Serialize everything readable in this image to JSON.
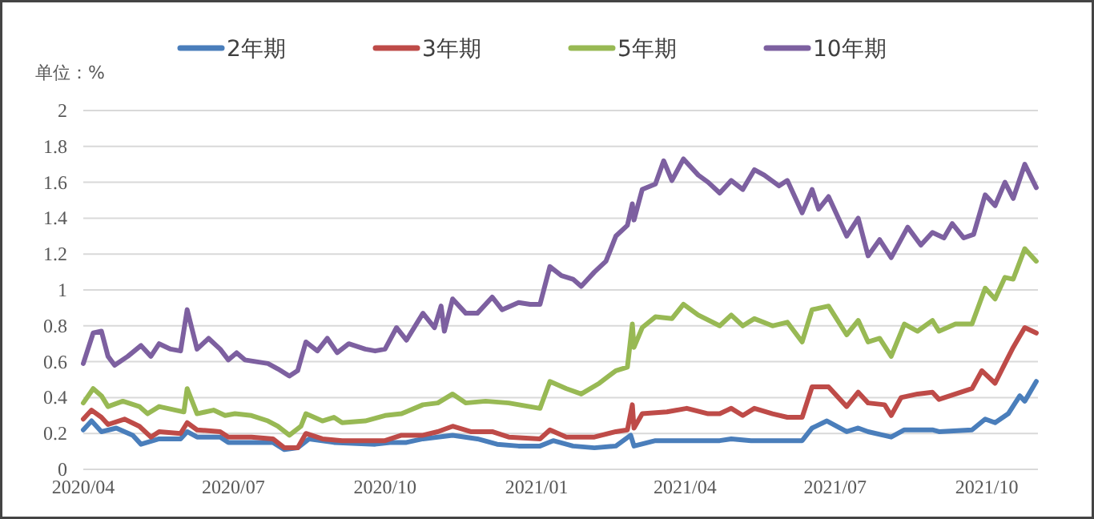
{
  "chart_data": {
    "type": "line",
    "ylabel": "单位：%",
    "legend": "top",
    "grid": "y",
    "xlim": [
      "2020-04-01",
      "2021-11-01"
    ],
    "ylim": [
      0,
      2
    ],
    "xticks": [
      {
        "value": "2020-04-01",
        "label": "2020/04"
      },
      {
        "value": "2020-07-01",
        "label": "2020/07"
      },
      {
        "value": "2020-10-01",
        "label": "2020/10"
      },
      {
        "value": "2021-01-01",
        "label": "2021/01"
      },
      {
        "value": "2021-04-01",
        "label": "2021/04"
      },
      {
        "value": "2021-07-01",
        "label": "2021/07"
      },
      {
        "value": "2021-10-01",
        "label": "2021/10"
      }
    ],
    "yticks": [
      0,
      0.2,
      0.4,
      0.6,
      0.8,
      1,
      1.2,
      1.4,
      1.6,
      1.8,
      2
    ],
    "series": [
      {
        "name": "2年期",
        "color": "#4a7ebb",
        "x": [
          "2020-04-01",
          "2020-04-06",
          "2020-04-12",
          "2020-04-21",
          "2020-05-01",
          "2020-05-06",
          "2020-05-17",
          "2020-05-30",
          "2020-06-03",
          "2020-06-09",
          "2020-06-23",
          "2020-06-28",
          "2020-07-12",
          "2020-07-25",
          "2020-08-01",
          "2020-08-09",
          "2020-08-16",
          "2020-08-31",
          "2020-09-25",
          "2020-10-04",
          "2020-10-14",
          "2020-10-24",
          "2020-11-11",
          "2020-11-26",
          "2020-12-08",
          "2020-12-21",
          "2021-01-03",
          "2021-01-11",
          "2021-01-23",
          "2021-02-05",
          "2021-02-18",
          "2021-02-27",
          "2021-03-01",
          "2021-03-14",
          "2021-04-02",
          "2021-04-15",
          "2021-04-22",
          "2021-04-29",
          "2021-05-11",
          "2021-05-28",
          "2021-06-11",
          "2021-06-17",
          "2021-06-26",
          "2021-07-08",
          "2021-07-15",
          "2021-07-21",
          "2021-08-04",
          "2021-08-12",
          "2021-08-29",
          "2021-09-02",
          "2021-09-22",
          "2021-09-30",
          "2021-10-06",
          "2021-10-14",
          "2021-10-21",
          "2021-10-24",
          "2021-10-31"
        ],
        "values": [
          0.22,
          0.27,
          0.21,
          0.23,
          0.19,
          0.14,
          0.17,
          0.17,
          0.21,
          0.18,
          0.18,
          0.15,
          0.15,
          0.15,
          0.11,
          0.12,
          0.17,
          0.15,
          0.14,
          0.15,
          0.15,
          0.17,
          0.19,
          0.17,
          0.14,
          0.13,
          0.13,
          0.16,
          0.13,
          0.12,
          0.13,
          0.19,
          0.13,
          0.16,
          0.16,
          0.16,
          0.16,
          0.17,
          0.16,
          0.16,
          0.16,
          0.23,
          0.27,
          0.21,
          0.23,
          0.21,
          0.18,
          0.22,
          0.22,
          0.21,
          0.22,
          0.28,
          0.26,
          0.31,
          0.41,
          0.38,
          0.49
        ]
      },
      {
        "name": "3年期",
        "color": "#be4b48",
        "x": [
          "2020-04-01",
          "2020-04-06",
          "2020-04-12",
          "2020-04-16",
          "2020-04-26",
          "2020-05-05",
          "2020-05-12",
          "2020-05-17",
          "2020-05-30",
          "2020-06-03",
          "2020-06-09",
          "2020-06-23",
          "2020-06-28",
          "2020-07-12",
          "2020-07-25",
          "2020-08-01",
          "2020-08-09",
          "2020-08-14",
          "2020-08-24",
          "2020-09-05",
          "2020-09-25",
          "2020-10-01",
          "2020-10-11",
          "2020-10-24",
          "2020-11-02",
          "2020-11-11",
          "2020-11-22",
          "2020-12-05",
          "2020-12-15",
          "2021-01-03",
          "2021-01-09",
          "2021-01-19",
          "2021-02-05",
          "2021-02-18",
          "2021-02-25",
          "2021-02-28",
          "2021-03-01",
          "2021-03-06",
          "2021-03-21",
          "2021-04-02",
          "2021-04-15",
          "2021-04-22",
          "2021-04-29",
          "2021-05-06",
          "2021-05-13",
          "2021-05-24",
          "2021-06-02",
          "2021-06-11",
          "2021-06-17",
          "2021-06-27",
          "2021-07-08",
          "2021-07-15",
          "2021-07-21",
          "2021-07-31",
          "2021-08-04",
          "2021-08-10",
          "2021-08-20",
          "2021-08-29",
          "2021-09-02",
          "2021-09-12",
          "2021-09-22",
          "2021-09-28",
          "2021-10-06",
          "2021-10-12",
          "2021-10-17",
          "2021-10-24",
          "2021-10-31"
        ],
        "values": [
          0.28,
          0.33,
          0.29,
          0.25,
          0.28,
          0.24,
          0.18,
          0.21,
          0.2,
          0.26,
          0.22,
          0.21,
          0.18,
          0.18,
          0.17,
          0.12,
          0.12,
          0.2,
          0.17,
          0.16,
          0.16,
          0.16,
          0.19,
          0.19,
          0.21,
          0.24,
          0.21,
          0.21,
          0.18,
          0.17,
          0.22,
          0.18,
          0.18,
          0.21,
          0.22,
          0.36,
          0.23,
          0.31,
          0.32,
          0.34,
          0.31,
          0.31,
          0.34,
          0.3,
          0.34,
          0.31,
          0.29,
          0.29,
          0.46,
          0.46,
          0.35,
          0.43,
          0.37,
          0.36,
          0.3,
          0.4,
          0.42,
          0.43,
          0.39,
          0.42,
          0.45,
          0.55,
          0.48,
          0.59,
          0.68,
          0.79,
          0.76
        ]
      },
      {
        "name": "5年期",
        "color": "#98b954",
        "x": [
          "2020-04-01",
          "2020-04-07",
          "2020-04-12",
          "2020-04-16",
          "2020-04-25",
          "2020-05-05",
          "2020-05-10",
          "2020-05-17",
          "2020-05-27",
          "2020-06-01",
          "2020-06-03",
          "2020-06-09",
          "2020-06-19",
          "2020-06-26",
          "2020-07-02",
          "2020-07-12",
          "2020-07-22",
          "2020-07-28",
          "2020-08-04",
          "2020-08-11",
          "2020-08-14",
          "2020-08-24",
          "2020-08-31",
          "2020-09-05",
          "2020-09-19",
          "2020-10-01",
          "2020-10-11",
          "2020-10-24",
          "2020-11-02",
          "2020-11-11",
          "2020-11-19",
          "2020-12-01",
          "2020-12-15",
          "2021-01-03",
          "2021-01-09",
          "2021-01-19",
          "2021-01-28",
          "2021-02-08",
          "2021-02-18",
          "2021-02-25",
          "2021-02-28",
          "2021-03-01",
          "2021-03-06",
          "2021-03-14",
          "2021-03-24",
          "2021-03-31",
          "2021-04-09",
          "2021-04-22",
          "2021-04-29",
          "2021-05-06",
          "2021-05-13",
          "2021-05-24",
          "2021-06-02",
          "2021-06-11",
          "2021-06-17",
          "2021-06-27",
          "2021-07-08",
          "2021-07-15",
          "2021-07-21",
          "2021-07-28",
          "2021-08-04",
          "2021-08-12",
          "2021-08-20",
          "2021-08-29",
          "2021-09-02",
          "2021-09-12",
          "2021-09-22",
          "2021-09-30",
          "2021-10-06",
          "2021-10-12",
          "2021-10-17",
          "2021-10-24",
          "2021-10-31"
        ],
        "values": [
          0.37,
          0.45,
          0.41,
          0.35,
          0.38,
          0.35,
          0.31,
          0.35,
          0.33,
          0.32,
          0.45,
          0.31,
          0.33,
          0.3,
          0.31,
          0.3,
          0.27,
          0.24,
          0.19,
          0.24,
          0.31,
          0.27,
          0.29,
          0.26,
          0.27,
          0.3,
          0.31,
          0.36,
          0.37,
          0.42,
          0.37,
          0.38,
          0.37,
          0.34,
          0.49,
          0.45,
          0.42,
          0.48,
          0.55,
          0.57,
          0.81,
          0.68,
          0.79,
          0.85,
          0.84,
          0.92,
          0.86,
          0.8,
          0.86,
          0.8,
          0.84,
          0.8,
          0.82,
          0.71,
          0.89,
          0.91,
          0.75,
          0.83,
          0.71,
          0.73,
          0.63,
          0.81,
          0.77,
          0.83,
          0.77,
          0.81,
          0.81,
          1.01,
          0.95,
          1.07,
          1.06,
          1.23,
          1.16
        ]
      },
      {
        "name": "10年期",
        "color": "#7d60a0",
        "x": [
          "2020-04-01",
          "2020-04-07",
          "2020-04-12",
          "2020-04-16",
          "2020-04-20",
          "2020-04-28",
          "2020-05-06",
          "2020-05-12",
          "2020-05-17",
          "2020-05-24",
          "2020-05-30",
          "2020-06-03",
          "2020-06-09",
          "2020-06-16",
          "2020-06-23",
          "2020-06-28",
          "2020-07-03",
          "2020-07-08",
          "2020-07-15",
          "2020-07-22",
          "2020-07-28",
          "2020-08-04",
          "2020-08-09",
          "2020-08-14",
          "2020-08-21",
          "2020-08-27",
          "2020-09-02",
          "2020-09-09",
          "2020-09-19",
          "2020-09-25",
          "2020-10-01",
          "2020-10-08",
          "2020-10-14",
          "2020-10-24",
          "2020-10-31",
          "2020-11-04",
          "2020-11-06",
          "2020-11-11",
          "2020-11-19",
          "2020-11-26",
          "2020-12-05",
          "2020-12-11",
          "2020-12-21",
          "2020-12-28",
          "2021-01-03",
          "2021-01-09",
          "2021-01-16",
          "2021-01-23",
          "2021-01-28",
          "2021-02-05",
          "2021-02-12",
          "2021-02-18",
          "2021-02-25",
          "2021-02-28",
          "2021-03-01",
          "2021-03-06",
          "2021-03-14",
          "2021-03-19",
          "2021-03-24",
          "2021-03-31",
          "2021-04-09",
          "2021-04-15",
          "2021-04-22",
          "2021-04-29",
          "2021-05-06",
          "2021-05-13",
          "2021-05-19",
          "2021-05-28",
          "2021-06-02",
          "2021-06-11",
          "2021-06-17",
          "2021-06-21",
          "2021-06-27",
          "2021-07-08",
          "2021-07-15",
          "2021-07-21",
          "2021-07-28",
          "2021-08-04",
          "2021-08-14",
          "2021-08-22",
          "2021-08-29",
          "2021-09-05",
          "2021-09-10",
          "2021-09-17",
          "2021-09-23",
          "2021-09-30",
          "2021-10-06",
          "2021-10-12",
          "2021-10-17",
          "2021-10-24",
          "2021-10-31"
        ],
        "values": [
          0.59,
          0.76,
          0.77,
          0.63,
          0.58,
          0.63,
          0.69,
          0.63,
          0.7,
          0.67,
          0.66,
          0.89,
          0.67,
          0.73,
          0.67,
          0.61,
          0.65,
          0.61,
          0.6,
          0.59,
          0.56,
          0.52,
          0.55,
          0.71,
          0.66,
          0.73,
          0.65,
          0.7,
          0.67,
          0.66,
          0.67,
          0.79,
          0.72,
          0.87,
          0.79,
          0.91,
          0.77,
          0.95,
          0.87,
          0.87,
          0.96,
          0.89,
          0.93,
          0.92,
          0.92,
          1.13,
          1.08,
          1.06,
          1.02,
          1.1,
          1.16,
          1.3,
          1.36,
          1.48,
          1.39,
          1.56,
          1.59,
          1.72,
          1.61,
          1.73,
          1.64,
          1.6,
          1.54,
          1.61,
          1.56,
          1.67,
          1.64,
          1.58,
          1.61,
          1.43,
          1.56,
          1.45,
          1.52,
          1.3,
          1.4,
          1.19,
          1.28,
          1.18,
          1.35,
          1.25,
          1.32,
          1.29,
          1.37,
          1.29,
          1.31,
          1.53,
          1.47,
          1.6,
          1.51,
          1.7,
          1.57
        ]
      }
    ]
  }
}
